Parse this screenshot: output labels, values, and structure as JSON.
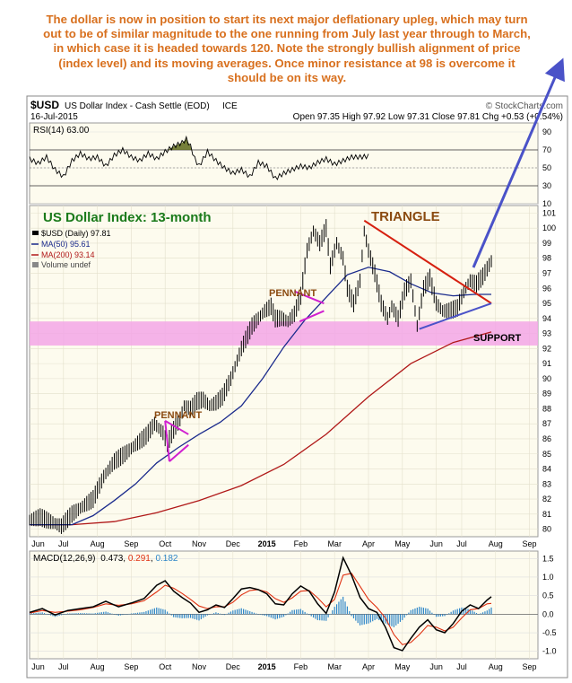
{
  "commentary": "The dollar is now in position to start its next major deflationary upleg, which may turn\nout to be of similar magnitude to the one running from July last year through to March,\nin which case it is headed towards 120. Note the strongly bullish alignment of price\n(index level) and its moving averages. Once minor resistance at 98 is overcome it\nshould be on its way.",
  "header": {
    "symbol": "$USD",
    "name": "US Dollar Index - Cash Settle (EOD)",
    "exchange": "ICE",
    "source": "© StockCharts.com",
    "date": "16-Jul-2015",
    "quote": "Open 97.35  High 97.92  Low 97.31  Close 97.81  Chg +0.53 (+0.54%)"
  },
  "colors": {
    "price": "#000000",
    "ma50": "#1a2a8c",
    "ma200": "#b01818",
    "rsi_fill": "#5e6a1a",
    "macd": "#000000",
    "signal": "#e03010",
    "histogram": "#2e86c8",
    "support_band": "#f3a6e6",
    "pennant": "#d020d0",
    "triangle_upper": "#d62010",
    "triangle_lower": "#4a52c8",
    "arrow": "#4a52c8",
    "annotation_green": "#1a7a1a",
    "annotation_brown": "#8a4a10",
    "panel_bg": "#fdfbee"
  },
  "chart_data": [
    {
      "type": "line",
      "panel": "rsi",
      "label": "RSI(14) 63.00",
      "ylim": [
        10,
        100
      ],
      "y_ticks": [
        10,
        30,
        50,
        70,
        90
      ],
      "reference_lines": [
        30,
        70
      ],
      "x_index": [
        0,
        8,
        16,
        24,
        32,
        40,
        48,
        56,
        64,
        72,
        80,
        88,
        96,
        104,
        112,
        120,
        128,
        136,
        144,
        148,
        152,
        156,
        160,
        168,
        176,
        184,
        192,
        200,
        208,
        216,
        224,
        232,
        240,
        248,
        256,
        264,
        272,
        280,
        288,
        296,
        304,
        312,
        320
      ],
      "values": [
        60,
        55,
        62,
        48,
        40,
        58,
        66,
        60,
        62,
        52,
        64,
        70,
        62,
        58,
        66,
        60,
        68,
        74,
        78,
        82,
        74,
        60,
        52,
        68,
        58,
        50,
        44,
        48,
        40,
        56,
        52,
        38,
        44,
        48,
        52,
        50,
        56,
        60,
        54,
        58,
        62,
        62,
        63
      ]
    },
    {
      "type": "line",
      "panel": "price",
      "title": "US Dollar Index: 13-month",
      "ylim": [
        79.5,
        101.5
      ],
      "y_ticks": [
        80,
        81,
        82,
        83,
        84,
        85,
        86,
        87,
        88,
        89,
        90,
        91,
        92,
        93,
        94,
        95,
        96,
        97,
        98,
        99,
        100,
        101
      ],
      "x_ticks": [
        "Jun",
        "Jul",
        "Aug",
        "Sep",
        "Oct",
        "Nov",
        "Dec",
        "2015",
        "Feb",
        "Mar",
        "Apr",
        "May",
        "Jun",
        "Jul",
        "Aug",
        "Sep"
      ],
      "x_tick_index": [
        8,
        32,
        64,
        96,
        128,
        160,
        192,
        224,
        256,
        288,
        320,
        352,
        384,
        408,
        440,
        472
      ],
      "legend": [
        "$USD (Daily) 97.81",
        "MA(50) 95.61",
        "MA(200) 93.14",
        "Volume undef"
      ],
      "series": [
        {
          "name": "$USD (Daily) 97.81",
          "x_index": [
            0,
            10,
            20,
            30,
            40,
            50,
            60,
            70,
            80,
            90,
            100,
            110,
            118,
            126,
            130,
            136,
            142,
            146,
            152,
            158,
            164,
            170,
            176,
            182,
            190,
            200,
            210,
            222,
            228,
            232,
            238,
            244,
            250,
            256,
            262,
            268,
            274,
            280,
            284,
            290,
            296,
            300,
            306,
            312,
            316,
            320,
            326,
            332,
            338,
            342,
            348,
            354,
            360,
            366,
            372,
            378,
            384,
            390,
            396,
            404,
            410,
            416,
            422,
            428,
            432,
            436
          ],
          "values": [
            80.6,
            80.8,
            80.5,
            80.2,
            81.0,
            81.5,
            82.0,
            83.5,
            84.5,
            85.0,
            85.6,
            86.2,
            87.0,
            86.4,
            85.7,
            86.6,
            87.3,
            88.2,
            88.0,
            88.5,
            88.6,
            88.2,
            88.4,
            88.8,
            90.0,
            92.0,
            93.5,
            94.5,
            94.8,
            94.0,
            94.0,
            93.8,
            94.3,
            95.5,
            98.5,
            99.8,
            99.0,
            100.0,
            97.5,
            99.0,
            98.0,
            96.0,
            95.0,
            96.5,
            99.8,
            98.5,
            97.0,
            95.0,
            94.0,
            94.8,
            94.0,
            95.8,
            96.5,
            93.5,
            96.0,
            96.7,
            95.0,
            94.5,
            94.5,
            94.7,
            95.8,
            96.5,
            96.3,
            96.8,
            97.3,
            97.8
          ]
        },
        {
          "name": "MA(50) 95.61",
          "x_index": [
            0,
            20,
            40,
            60,
            80,
            100,
            120,
            140,
            160,
            180,
            200,
            220,
            240,
            260,
            280,
            300,
            320,
            340,
            360,
            380,
            400,
            420,
            436
          ],
          "values": [
            80.3,
            80.3,
            80.3,
            80.9,
            81.9,
            83.0,
            84.4,
            85.4,
            86.3,
            87.1,
            88.2,
            90.0,
            92.1,
            93.9,
            95.4,
            96.9,
            97.4,
            97.1,
            96.3,
            95.7,
            95.5,
            95.6,
            95.6
          ]
        },
        {
          "name": "MA(200) 93.14",
          "x_index": [
            0,
            40,
            80,
            120,
            160,
            200,
            240,
            280,
            320,
            360,
            400,
            436
          ],
          "values": [
            80.3,
            80.3,
            80.5,
            81.1,
            81.9,
            82.9,
            84.3,
            86.3,
            88.8,
            91.0,
            92.4,
            93.1
          ]
        }
      ],
      "annotations": {
        "triangle": "TRIANGLE",
        "pennant_1": "PENNANT",
        "pennant_2": "PENNANT",
        "support": "SUPPORT",
        "support_level": 93
      }
    },
    {
      "type": "line",
      "panel": "macd",
      "label": "MACD(12,26,9) 0.473, 0.291, 0.182",
      "label_parts": {
        "name": "MACD(12,26,9)",
        "macd": "0.473",
        "signal": "0.291",
        "hist": "0.182"
      },
      "ylim": [
        -1.2,
        1.7
      ],
      "y_ticks": [
        -1.0,
        -0.5,
        0.0,
        0.5,
        1.0,
        1.5
      ],
      "x_index": [
        0,
        12,
        24,
        36,
        48,
        60,
        72,
        84,
        96,
        108,
        120,
        128,
        136,
        144,
        152,
        160,
        168,
        176,
        184,
        192,
        200,
        208,
        216,
        224,
        232,
        240,
        248,
        256,
        264,
        272,
        280,
        288,
        296,
        304,
        312,
        320,
        328,
        336,
        344,
        352,
        360,
        368,
        376,
        384,
        392,
        400,
        408,
        416,
        424,
        432,
        436
      ],
      "macd": [
        0.05,
        0.15,
        -0.02,
        0.1,
        0.15,
        0.2,
        0.35,
        0.2,
        0.3,
        0.42,
        0.78,
        0.9,
        0.62,
        0.45,
        0.3,
        0.05,
        0.12,
        0.25,
        0.18,
        0.42,
        0.68,
        0.72,
        0.66,
        0.55,
        0.28,
        0.25,
        0.55,
        0.76,
        0.62,
        0.28,
        0.02,
        0.6,
        1.52,
        1.05,
        0.45,
        0.15,
        0.05,
        -0.35,
        -0.9,
        -0.98,
        -0.65,
        -0.35,
        -0.15,
        -0.42,
        -0.5,
        -0.25,
        0.08,
        0.25,
        0.15,
        0.38,
        0.47
      ],
      "signal": [
        0.03,
        0.1,
        0.05,
        0.08,
        0.12,
        0.18,
        0.28,
        0.24,
        0.28,
        0.36,
        0.6,
        0.78,
        0.7,
        0.56,
        0.4,
        0.22,
        0.15,
        0.2,
        0.2,
        0.32,
        0.52,
        0.64,
        0.66,
        0.6,
        0.42,
        0.32,
        0.44,
        0.62,
        0.64,
        0.44,
        0.2,
        0.4,
        1.05,
        1.1,
        0.75,
        0.4,
        0.18,
        -0.1,
        -0.55,
        -0.82,
        -0.76,
        -0.55,
        -0.3,
        -0.35,
        -0.45,
        -0.35,
        -0.1,
        0.12,
        0.15,
        0.28,
        0.29
      ]
    }
  ]
}
